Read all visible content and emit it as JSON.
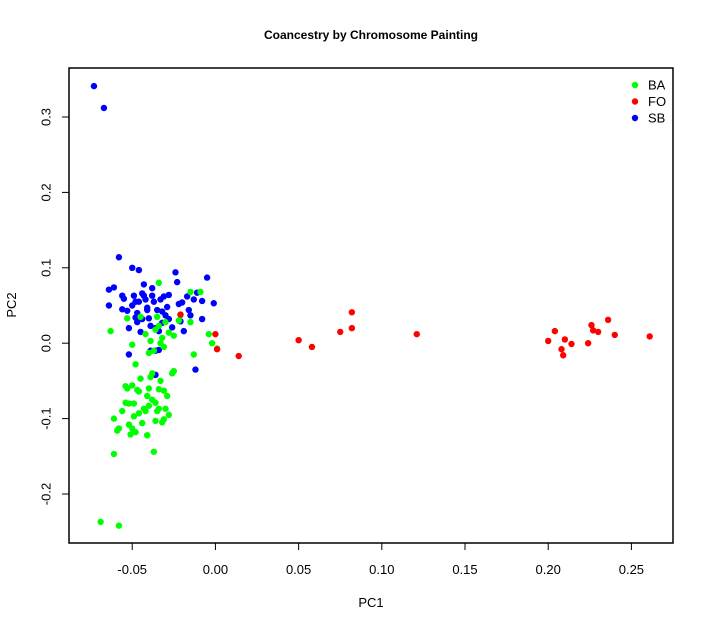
{
  "chart_data": {
    "type": "scatter",
    "title": "Coancestry by Chromosome Painting",
    "xlabel": "PC1",
    "ylabel": "PC2",
    "xlim": [
      -0.088,
      0.275
    ],
    "ylim": [
      -0.265,
      0.365
    ],
    "xticks": [
      -0.05,
      0.0,
      0.05,
      0.1,
      0.15,
      0.2,
      0.25
    ],
    "xtick_labels": [
      "-0.05",
      "0.00",
      "0.05",
      "0.10",
      "0.15",
      "0.20",
      "0.25"
    ],
    "yticks": [
      -0.2,
      -0.1,
      0.0,
      0.1,
      0.2,
      0.3
    ],
    "ytick_labels": [
      "-0.2",
      "-0.1",
      "0.0",
      "0.1",
      "0.2",
      "0.3"
    ],
    "grid": false,
    "legend_position": "top-right",
    "series": [
      {
        "name": "BA",
        "color": "#00ff00",
        "points": [
          [
            -0.069,
            -0.237
          ],
          [
            -0.058,
            -0.242
          ],
          [
            -0.061,
            -0.147
          ],
          [
            -0.061,
            -0.1
          ],
          [
            -0.058,
            -0.113
          ],
          [
            -0.059,
            -0.116
          ],
          [
            -0.056,
            -0.09
          ],
          [
            -0.054,
            -0.079
          ],
          [
            -0.052,
            -0.08
          ],
          [
            -0.052,
            -0.108
          ],
          [
            -0.051,
            -0.121
          ],
          [
            -0.05,
            -0.113
          ],
          [
            -0.049,
            -0.08
          ],
          [
            -0.049,
            -0.097
          ],
          [
            -0.048,
            -0.118
          ],
          [
            -0.047,
            -0.062
          ],
          [
            -0.046,
            -0.064
          ],
          [
            -0.046,
            -0.093
          ],
          [
            -0.045,
            -0.047
          ],
          [
            -0.044,
            -0.106
          ],
          [
            -0.043,
            -0.087
          ],
          [
            -0.042,
            -0.09
          ],
          [
            -0.041,
            -0.07
          ],
          [
            -0.041,
            -0.122
          ],
          [
            -0.04,
            -0.06
          ],
          [
            -0.04,
            -0.083
          ],
          [
            -0.039,
            -0.045
          ],
          [
            -0.038,
            -0.075
          ],
          [
            -0.038,
            -0.04
          ],
          [
            -0.037,
            -0.144
          ],
          [
            -0.036,
            -0.079
          ],
          [
            -0.036,
            -0.103
          ],
          [
            -0.035,
            -0.09
          ],
          [
            -0.034,
            -0.061
          ],
          [
            -0.034,
            -0.087
          ],
          [
            -0.033,
            -0.05
          ],
          [
            -0.032,
            -0.105
          ],
          [
            -0.031,
            -0.063
          ],
          [
            -0.031,
            -0.101
          ],
          [
            -0.03,
            -0.087
          ],
          [
            -0.029,
            -0.07
          ],
          [
            -0.028,
            -0.095
          ],
          [
            -0.054,
            -0.057
          ],
          [
            -0.053,
            -0.06
          ],
          [
            -0.05,
            -0.056
          ],
          [
            -0.04,
            -0.013
          ],
          [
            -0.039,
            0.003
          ],
          [
            -0.037,
            -0.01
          ],
          [
            -0.036,
            0.018
          ],
          [
            -0.035,
            0.035
          ],
          [
            -0.034,
            0.023
          ],
          [
            -0.033,
            0.0
          ],
          [
            -0.032,
            0.007
          ],
          [
            -0.031,
            -0.005
          ],
          [
            -0.03,
            0.028
          ],
          [
            -0.028,
            0.014
          ],
          [
            -0.026,
            -0.04
          ],
          [
            -0.025,
            -0.037
          ],
          [
            -0.025,
            0.01
          ],
          [
            -0.022,
            0.03
          ],
          [
            -0.021,
            0.037
          ],
          [
            -0.015,
            0.028
          ],
          [
            -0.013,
            -0.015
          ],
          [
            -0.015,
            0.068
          ],
          [
            -0.009,
            0.068
          ],
          [
            -0.004,
            0.012
          ],
          [
            -0.002,
            0.0
          ],
          [
            0.001,
            -0.007
          ],
          [
            -0.034,
            0.08
          ],
          [
            -0.045,
            0.035
          ],
          [
            -0.053,
            0.033
          ],
          [
            -0.063,
            0.016
          ],
          [
            -0.05,
            -0.002
          ],
          [
            -0.048,
            -0.028
          ],
          [
            -0.042,
            0.012
          ]
        ]
      },
      {
        "name": "FO",
        "color": "#ff0000",
        "points": [
          [
            -0.021,
            0.038
          ],
          [
            0.0,
            0.012
          ],
          [
            0.001,
            -0.008
          ],
          [
            0.014,
            -0.017
          ],
          [
            0.05,
            0.004
          ],
          [
            0.058,
            -0.005
          ],
          [
            0.075,
            0.015
          ],
          [
            0.082,
            0.02
          ],
          [
            0.082,
            0.041
          ],
          [
            0.121,
            0.012
          ],
          [
            0.2,
            0.003
          ],
          [
            0.204,
            0.016
          ],
          [
            0.208,
            -0.008
          ],
          [
            0.209,
            -0.016
          ],
          [
            0.21,
            0.005
          ],
          [
            0.214,
            -0.001
          ],
          [
            0.224,
            0.0
          ],
          [
            0.226,
            0.024
          ],
          [
            0.227,
            0.017
          ],
          [
            0.23,
            0.015
          ],
          [
            0.236,
            0.031
          ],
          [
            0.24,
            0.011
          ],
          [
            0.261,
            0.009
          ]
        ]
      },
      {
        "name": "SB",
        "color": "#0000ff",
        "points": [
          [
            -0.073,
            0.341
          ],
          [
            -0.067,
            0.312
          ],
          [
            -0.058,
            0.114
          ],
          [
            -0.064,
            0.071
          ],
          [
            -0.061,
            0.074
          ],
          [
            -0.064,
            0.05
          ],
          [
            -0.056,
            0.063
          ],
          [
            -0.055,
            0.059
          ],
          [
            -0.056,
            0.045
          ],
          [
            -0.053,
            0.043
          ],
          [
            -0.052,
            0.02
          ],
          [
            -0.052,
            -0.015
          ],
          [
            -0.05,
            0.05
          ],
          [
            -0.049,
            0.063
          ],
          [
            -0.048,
            0.034
          ],
          [
            -0.047,
            0.028
          ],
          [
            -0.046,
            0.055
          ],
          [
            -0.045,
            0.015
          ],
          [
            -0.044,
            0.066
          ],
          [
            -0.043,
            0.078
          ],
          [
            -0.042,
            0.058
          ],
          [
            -0.041,
            0.047
          ],
          [
            -0.04,
            0.033
          ],
          [
            -0.039,
            0.023
          ],
          [
            -0.038,
            0.063
          ],
          [
            -0.037,
            0.055
          ],
          [
            -0.036,
            0.02
          ],
          [
            -0.035,
            0.044
          ],
          [
            -0.034,
            0.016
          ],
          [
            -0.033,
            0.058
          ],
          [
            -0.032,
            0.027
          ],
          [
            -0.031,
            0.062
          ],
          [
            -0.03,
            0.037
          ],
          [
            -0.029,
            0.048
          ],
          [
            -0.028,
            0.032
          ],
          [
            -0.028,
            0.064
          ],
          [
            -0.026,
            0.021
          ],
          [
            -0.024,
            0.094
          ],
          [
            -0.023,
            0.081
          ],
          [
            -0.022,
            0.052
          ],
          [
            -0.021,
            0.029
          ],
          [
            -0.02,
            0.054
          ],
          [
            -0.019,
            0.016
          ],
          [
            -0.017,
            0.062
          ],
          [
            -0.016,
            0.044
          ],
          [
            -0.015,
            0.037
          ],
          [
            -0.013,
            0.058
          ],
          [
            -0.011,
            0.067
          ],
          [
            -0.008,
            0.056
          ],
          [
            -0.005,
            0.087
          ],
          [
            -0.001,
            0.053
          ],
          [
            -0.008,
            0.032
          ],
          [
            -0.012,
            -0.035
          ],
          [
            -0.036,
            -0.01
          ],
          [
            -0.039,
            -0.01
          ],
          [
            -0.034,
            -0.009
          ],
          [
            -0.036,
            -0.042
          ],
          [
            -0.041,
            0.044
          ],
          [
            -0.044,
            0.032
          ],
          [
            -0.048,
            0.055
          ],
          [
            -0.05,
            0.1
          ],
          [
            -0.047,
            0.04
          ],
          [
            -0.043,
            0.063
          ],
          [
            -0.046,
            0.097
          ],
          [
            -0.038,
            0.073
          ],
          [
            -0.032,
            0.042
          ]
        ]
      }
    ]
  }
}
